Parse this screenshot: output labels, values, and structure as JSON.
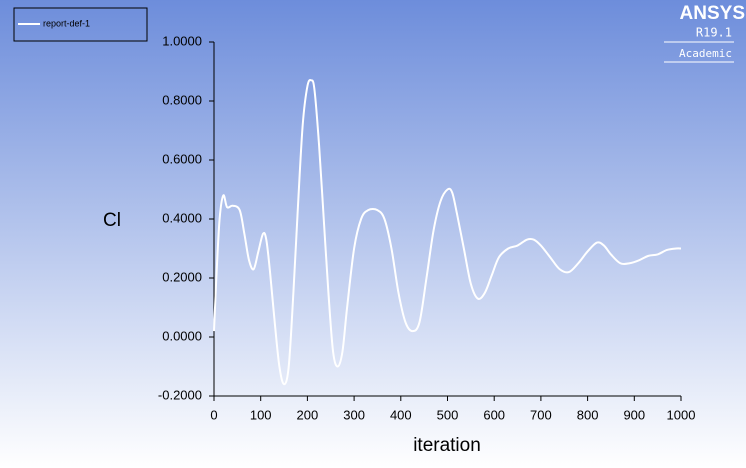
{
  "chart_data": {
    "type": "line",
    "xlabel": "iteration",
    "ylabel": "Cl",
    "legend": "top-left",
    "logo": {
      "name": "ANSYS",
      "version": "R19.1",
      "edition": "Academic"
    },
    "xlim": [
      0,
      1000
    ],
    "xticks": [
      0,
      100,
      200,
      300,
      400,
      500,
      600,
      700,
      800,
      900,
      1000
    ],
    "ylim": [
      -0.2,
      1.0
    ],
    "yticks": [
      {
        "value": -0.2,
        "label": "-0.2000"
      },
      {
        "value": 0,
        "label": "0.0000"
      },
      {
        "value": 0.2,
        "label": "0.2000"
      },
      {
        "value": 0.4,
        "label": "0.4000"
      },
      {
        "value": 0.6,
        "label": "0.6000"
      },
      {
        "value": 0.8,
        "label": "0.8000"
      },
      {
        "value": 1.0,
        "label": "1.0000"
      }
    ],
    "series": [
      {
        "name": "report-def-1",
        "color": "#ffffff",
        "x": [
          0,
          5,
          12,
          20,
          28,
          40,
          55,
          65,
          75,
          85,
          95,
          105,
          112,
          120,
          130,
          140,
          150,
          160,
          170,
          180,
          190,
          200,
          208,
          215,
          225,
          235,
          245,
          255,
          265,
          275,
          285,
          300,
          315,
          330,
          350,
          365,
          380,
          395,
          410,
          425,
          440,
          455,
          470,
          485,
          500,
          510,
          520,
          535,
          550,
          565,
          580,
          595,
          610,
          630,
          650,
          670,
          685,
          700,
          720,
          740,
          760,
          780,
          800,
          820,
          835,
          850,
          870,
          890,
          910,
          930,
          950,
          970,
          990,
          1000
        ],
        "values": [
          0.02,
          0.2,
          0.4,
          0.48,
          0.44,
          0.445,
          0.43,
          0.35,
          0.26,
          0.23,
          0.29,
          0.35,
          0.33,
          0.22,
          0.05,
          -0.1,
          -0.16,
          -0.1,
          0.15,
          0.45,
          0.72,
          0.85,
          0.87,
          0.84,
          0.65,
          0.4,
          0.15,
          -0.05,
          -0.1,
          -0.05,
          0.1,
          0.3,
          0.4,
          0.43,
          0.43,
          0.4,
          0.3,
          0.15,
          0.05,
          0.02,
          0.05,
          0.2,
          0.36,
          0.46,
          0.5,
          0.49,
          0.42,
          0.3,
          0.18,
          0.13,
          0.15,
          0.21,
          0.27,
          0.3,
          0.31,
          0.33,
          0.33,
          0.31,
          0.27,
          0.23,
          0.22,
          0.25,
          0.29,
          0.32,
          0.31,
          0.28,
          0.25,
          0.25,
          0.26,
          0.275,
          0.28,
          0.295,
          0.3,
          0.3
        ]
      }
    ]
  }
}
